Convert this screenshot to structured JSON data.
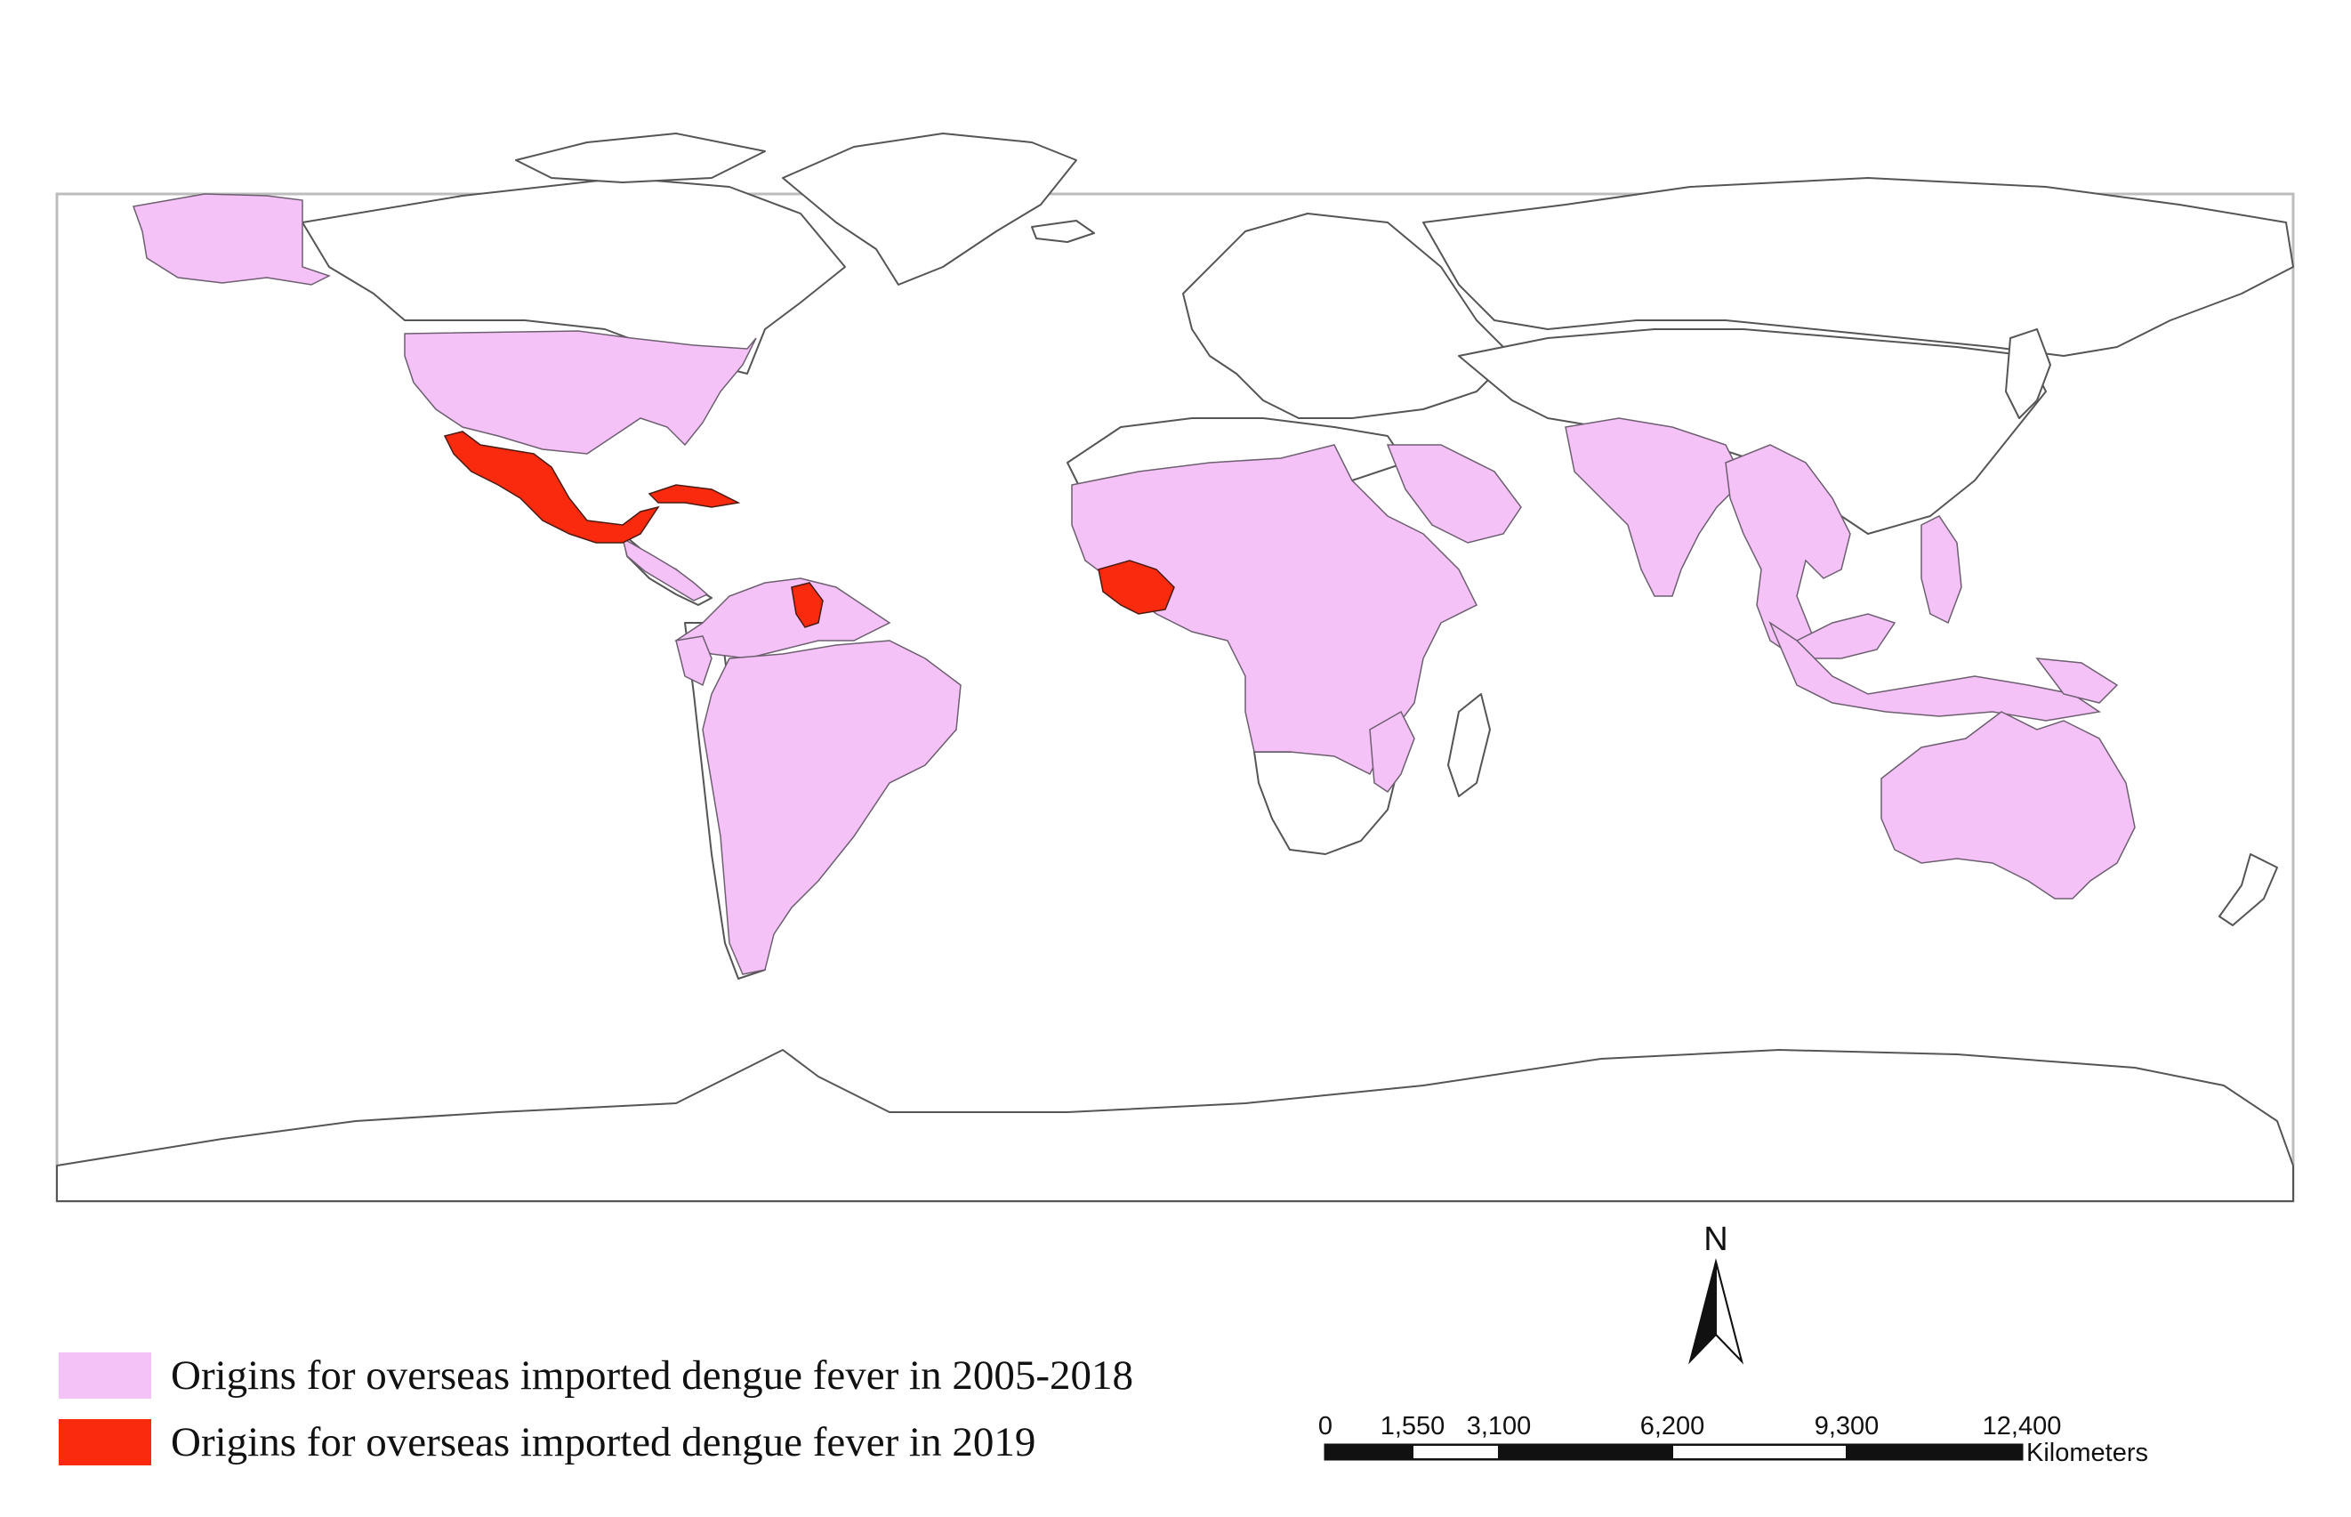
{
  "legend": {
    "items": [
      {
        "label": "Origins for overseas imported dengue fever in 2005-2018",
        "color": "#f4c2f6"
      },
      {
        "label": "Origins for overseas imported dengue fever in 2019",
        "color": "#fa2a0f"
      }
    ]
  },
  "north_arrow": {
    "label": "N"
  },
  "scale_bar": {
    "ticks": [
      "0",
      "1,550",
      "3,100",
      "6,200",
      "9,300",
      "12,400"
    ],
    "unit": "Kilometers"
  },
  "colors": {
    "origin_2005_2018": "#f4c2f6",
    "origin_2019": "#fa2a0f",
    "land": "#ffffff",
    "border": "#555555"
  },
  "highlighted_regions": {
    "origins_2005_2018": [
      "Alaska",
      "United States",
      "Central America",
      "Colombia",
      "Venezuela",
      "Brazil",
      "Peru",
      "Bolivia",
      "Paraguay",
      "Argentina",
      "West Africa",
      "Sahel",
      "Central Africa",
      "East Africa",
      "Mozambique",
      "Saudi Arabia",
      "India",
      "Myanmar",
      "Thailand",
      "Philippines",
      "Malaysia",
      "Indonesia",
      "Papua New Guinea",
      "Australia"
    ],
    "origins_2019": [
      "Mexico",
      "Cuba",
      "Guyana",
      "Ivory Coast / Ghana region"
    ]
  }
}
